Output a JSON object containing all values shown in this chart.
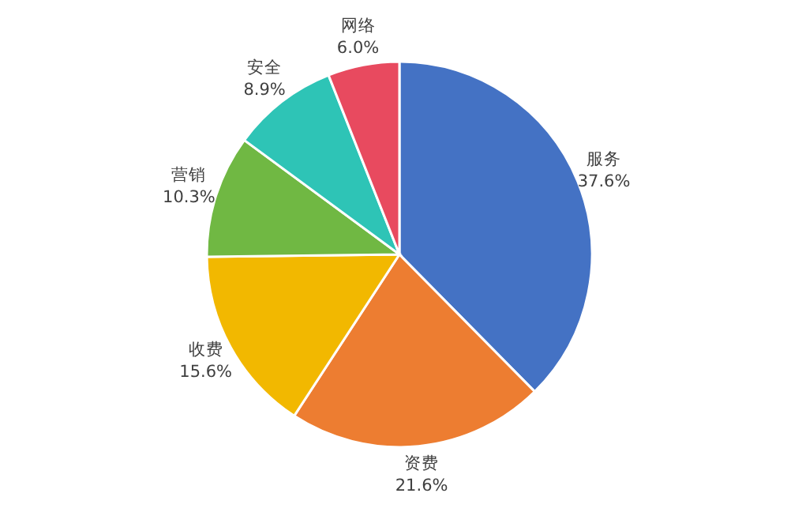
{
  "chart_data": {
    "type": "pie",
    "categories": [
      "服务",
      "资费",
      "收费",
      "营销",
      "安全",
      "网络"
    ],
    "values": [
      37.6,
      21.6,
      15.6,
      10.3,
      8.9,
      6.0
    ],
    "value_labels": [
      "37.6%",
      "21.6%",
      "15.6%",
      "10.3%",
      "8.9%",
      "6.0%"
    ],
    "colors": [
      "#4472c4",
      "#ed7d31",
      "#f2b800",
      "#70b843",
      "#2ec4b6",
      "#e84a5f"
    ],
    "legend": false
  }
}
